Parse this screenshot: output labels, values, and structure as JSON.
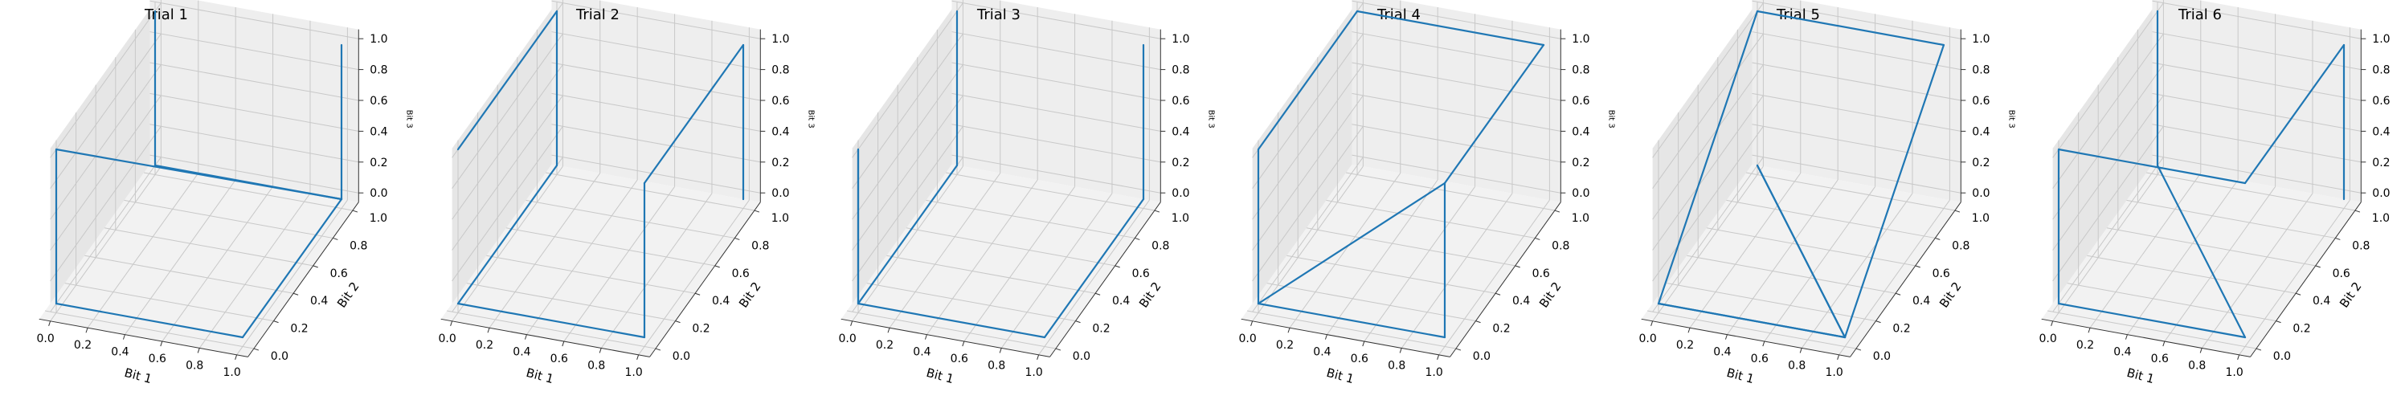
{
  "chart_data": [
    {
      "type": "line",
      "title": "Trial 1",
      "xlabel": "Bit 1",
      "ylabel": "Bit 2",
      "zlabel": "Bit 3",
      "xlim": [
        0,
        1
      ],
      "ylim": [
        0,
        1
      ],
      "zlim": [
        0,
        1
      ],
      "ticks": [
        "0.0",
        "0.2",
        "0.4",
        "0.6",
        "0.8",
        "1.0"
      ],
      "grid": true,
      "series": [
        {
          "color": "#1f77b4",
          "x": [
            0,
            0,
            1,
            0,
            0,
            1,
            1,
            1
          ],
          "y": [
            1,
            1,
            1,
            0,
            0,
            0,
            1,
            1
          ],
          "z": [
            1,
            0,
            0,
            1,
            0,
            0,
            0,
            1
          ]
        }
      ]
    },
    {
      "type": "line",
      "title": "Trial 2",
      "xlabel": "Bit 1",
      "ylabel": "Bit 2",
      "zlabel": "Bit 3",
      "xlim": [
        0,
        1
      ],
      "ylim": [
        0,
        1
      ],
      "zlim": [
        0,
        1
      ],
      "ticks": [
        "0.0",
        "0.2",
        "0.4",
        "0.6",
        "0.8",
        "1.0"
      ],
      "grid": true,
      "series": [
        {
          "color": "#1f77b4",
          "x": [
            0,
            0,
            0,
            0,
            0,
            1,
            1,
            1,
            1,
            1
          ],
          "y": [
            0,
            1,
            1,
            1,
            0,
            0,
            0,
            1,
            1,
            1
          ],
          "z": [
            1,
            1,
            1,
            0,
            0,
            0,
            1,
            1,
            0,
            0
          ]
        }
      ]
    },
    {
      "type": "line",
      "title": "Trial 3",
      "xlabel": "Bit 1",
      "ylabel": "Bit 2",
      "zlabel": "Bit 3",
      "xlim": [
        0,
        1
      ],
      "ylim": [
        0,
        1
      ],
      "zlim": [
        0,
        1
      ],
      "ticks": [
        "0.0",
        "0.2",
        "0.4",
        "0.6",
        "0.8",
        "1.0"
      ],
      "grid": true,
      "series": [
        {
          "color": "#1f77b4",
          "x": [
            0,
            0,
            0,
            0,
            0,
            1,
            1,
            1,
            1
          ],
          "y": [
            1,
            1,
            0,
            0,
            0,
            0,
            1,
            1,
            1
          ],
          "z": [
            1,
            0,
            0,
            1,
            0,
            0,
            0,
            0,
            1
          ]
        }
      ]
    },
    {
      "type": "line",
      "title": "Trial 4",
      "xlabel": "Bit 1",
      "ylabel": "Bit 2",
      "zlabel": "Bit 3",
      "xlim": [
        0,
        1
      ],
      "ylim": [
        0,
        1
      ],
      "zlim": [
        0,
        1
      ],
      "ticks": [
        "0.0",
        "0.2",
        "0.4",
        "0.6",
        "0.8",
        "1.0"
      ],
      "grid": true,
      "series": [
        {
          "color": "#1f77b4",
          "x": [
            1,
            1,
            1,
            0,
            0,
            0,
            1,
            1,
            0,
            0
          ],
          "y": [
            0,
            1,
            1,
            1,
            0,
            0,
            0,
            0,
            0,
            0
          ],
          "z": [
            1,
            1,
            1,
            1,
            1,
            0,
            0,
            1,
            0,
            0
          ]
        }
      ]
    },
    {
      "type": "line",
      "title": "Trial 5",
      "xlabel": "Bit 1",
      "ylabel": "Bit 2",
      "zlabel": "Bit 3",
      "xlim": [
        0,
        1
      ],
      "ylim": [
        0,
        1
      ],
      "zlim": [
        0,
        1
      ],
      "ticks": [
        "0.0",
        "0.2",
        "0.4",
        "0.6",
        "0.8",
        "1.0"
      ],
      "grid": true,
      "series": [
        {
          "color": "#1f77b4",
          "x": [
            1,
            1,
            0,
            0,
            1,
            0,
            1,
            0
          ],
          "y": [
            0,
            1,
            1,
            0,
            0,
            1,
            0,
            0
          ],
          "z": [
            0,
            1,
            1,
            0,
            0,
            0,
            0,
            0
          ]
        }
      ]
    },
    {
      "type": "line",
      "title": "Trial 6",
      "xlabel": "Bit 1",
      "ylabel": "Bit 2",
      "zlabel": "Bit 3",
      "xlim": [
        0,
        1
      ],
      "ylim": [
        0,
        1
      ],
      "zlim": [
        0,
        1
      ],
      "ticks": [
        "0.0",
        "0.2",
        "0.4",
        "0.6",
        "0.8",
        "1.0"
      ],
      "grid": true,
      "series": [
        {
          "color": "#1f77b4",
          "x": [
            1,
            1,
            1,
            0,
            0,
            1,
            0,
            0,
            0,
            0
          ],
          "y": [
            1,
            1,
            0,
            0,
            0,
            0,
            1,
            1,
            1,
            1
          ],
          "z": [
            0,
            1,
            1,
            1,
            0,
            0,
            0,
            1,
            1,
            1
          ]
        }
      ]
    }
  ]
}
